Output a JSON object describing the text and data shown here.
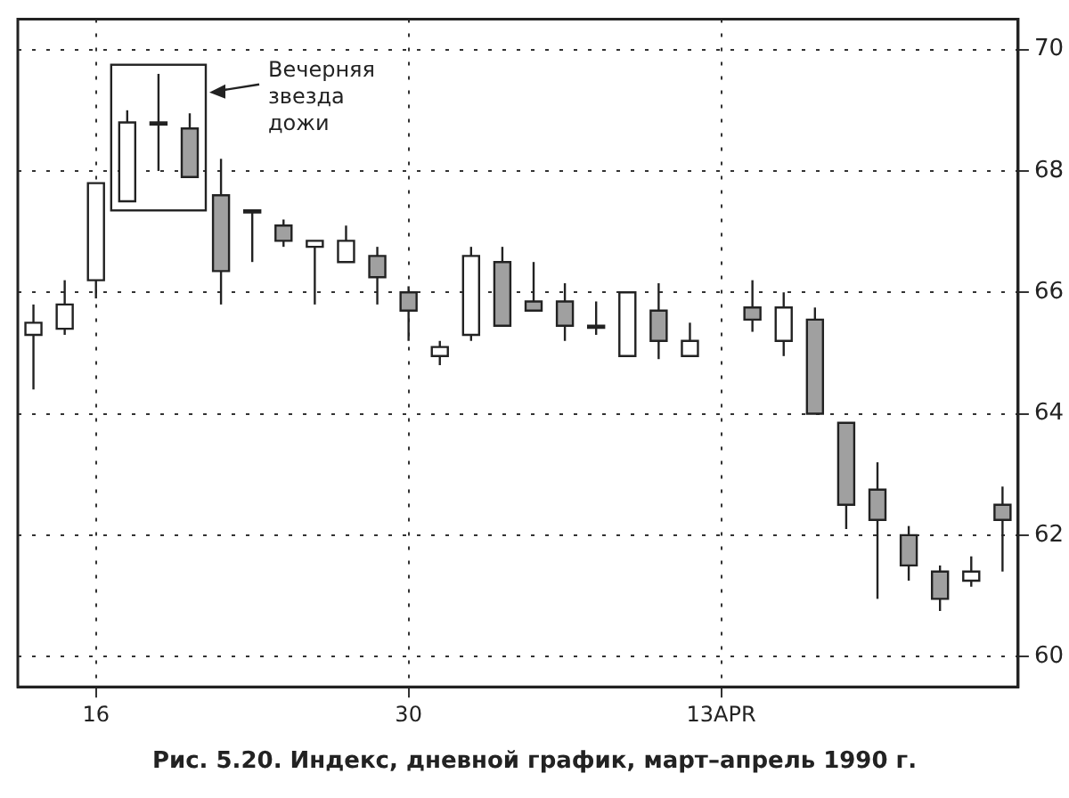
{
  "chart_data": {
    "type": "candlestick",
    "categories": [
      null,
      null,
      "16",
      null,
      null,
      null,
      null,
      null,
      null,
      null,
      null,
      null,
      "30",
      null,
      null,
      null,
      null,
      null,
      null,
      null,
      null,
      null,
      "13APR",
      null,
      null,
      null,
      null,
      null,
      null,
      null,
      null,
      null
    ],
    "ohlc": [
      [
        65.3,
        65.8,
        64.4,
        65.5
      ],
      [
        65.4,
        66.2,
        65.3,
        65.8
      ],
      [
        66.2,
        67.8,
        65.9,
        67.8
      ],
      [
        67.5,
        69.0,
        67.5,
        68.8
      ],
      [
        68.8,
        69.6,
        68.0,
        68.8
      ],
      [
        68.7,
        68.95,
        67.9,
        67.9
      ],
      [
        67.6,
        68.2,
        65.8,
        66.35
      ],
      [
        67.35,
        67.35,
        66.5,
        67.35
      ],
      [
        67.1,
        67.2,
        66.75,
        66.85
      ],
      [
        66.75,
        66.85,
        65.8,
        66.85
      ],
      [
        66.5,
        67.1,
        66.5,
        66.85
      ],
      [
        66.6,
        66.75,
        65.8,
        66.25
      ],
      [
        66.0,
        66.1,
        65.2,
        65.7
      ],
      [
        64.95,
        65.2,
        64.8,
        65.1
      ],
      [
        65.3,
        66.75,
        65.2,
        66.6
      ],
      [
        66.5,
        66.75,
        65.45,
        65.45
      ],
      [
        65.85,
        66.5,
        65.7,
        65.7
      ],
      [
        65.85,
        66.15,
        65.2,
        65.45
      ],
      [
        65.45,
        65.85,
        65.3,
        65.45
      ],
      [
        64.95,
        66.0,
        64.95,
        66.0
      ],
      [
        65.7,
        66.15,
        64.9,
        65.2
      ],
      [
        64.95,
        65.5,
        64.95,
        65.2
      ],
      null,
      [
        65.75,
        66.2,
        65.35,
        65.55
      ],
      [
        65.2,
        66.0,
        64.95,
        65.75
      ],
      [
        65.55,
        65.75,
        64.0,
        64.0
      ],
      [
        63.85,
        63.85,
        62.1,
        62.5
      ],
      [
        62.75,
        63.2,
        60.95,
        62.25
      ],
      [
        62.0,
        62.15,
        61.25,
        61.5
      ],
      [
        61.4,
        61.5,
        60.75,
        60.95
      ],
      [
        61.25,
        61.65,
        61.15,
        61.4
      ],
      [
        62.5,
        62.8,
        61.4,
        62.25
      ]
    ],
    "colors": [
      "#ffffff",
      "#ffffff",
      "#ffffff",
      "#ffffff",
      "#ffffff",
      "#a0a0a0",
      "#a0a0a0",
      "#ffffff",
      "#a0a0a0",
      "#ffffff",
      "#ffffff",
      "#a0a0a0",
      "#a0a0a0",
      "#ffffff",
      "#ffffff",
      "#a0a0a0",
      "#a0a0a0",
      "#a0a0a0",
      "#ffffff",
      "#ffffff",
      "#a0a0a0",
      "#ffffff",
      null,
      "#a0a0a0",
      "#ffffff",
      "#a0a0a0",
      "#a0a0a0",
      "#a0a0a0",
      "#a0a0a0",
      "#a0a0a0",
      "#ffffff",
      "#a0a0a0"
    ],
    "ylim": [
      59.5,
      70.5
    ],
    "yticks": [
      60,
      62,
      64,
      66,
      68,
      70
    ],
    "grid": true,
    "legend": false,
    "annotations": [
      "Вечерняя звезда дожи",
      "Рис. 5.20. Индекс, дневной график, март–апрель 1990 г."
    ]
  }
}
